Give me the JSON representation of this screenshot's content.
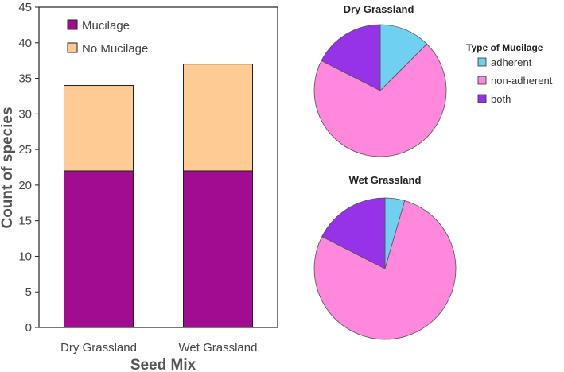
{
  "chart_data": [
    {
      "type": "bar",
      "stacked": true,
      "categories": [
        "Dry Grassland",
        "Wet Grassland"
      ],
      "series": [
        {
          "name": "Mucilage",
          "values": [
            22,
            22
          ],
          "color": "#a10c90"
        },
        {
          "name": "No Mucilage",
          "values": [
            12,
            15
          ],
          "color": "#fdcb93"
        }
      ],
      "xlabel": "Seed Mix",
      "ylabel": "Count of species",
      "ylim": [
        0,
        45
      ],
      "yticks": [
        0,
        5,
        10,
        15,
        20,
        25,
        30,
        35,
        40,
        45
      ],
      "legend_position": "top-left",
      "grid": false
    },
    {
      "type": "pie",
      "title": "Dry Grassland",
      "labels": [
        "adherent",
        "non-adherent",
        "both"
      ],
      "values": [
        12.5,
        70,
        17.5
      ],
      "colors": [
        "#6fd0f2",
        "#ff88dc",
        "#9632e8"
      ]
    },
    {
      "type": "pie",
      "title": "Wet Grassland",
      "labels": [
        "adherent",
        "non-adherent",
        "both"
      ],
      "values": [
        4.5,
        78,
        17.5
      ],
      "colors": [
        "#6fd0f2",
        "#ff88dc",
        "#9632e8"
      ]
    }
  ],
  "pie_legend": {
    "title": "Type of Mucilage",
    "items": [
      "adherent",
      "non-adherent",
      "both"
    ],
    "colors": [
      "#6fd0f2",
      "#ff88dc",
      "#9632e8"
    ]
  }
}
